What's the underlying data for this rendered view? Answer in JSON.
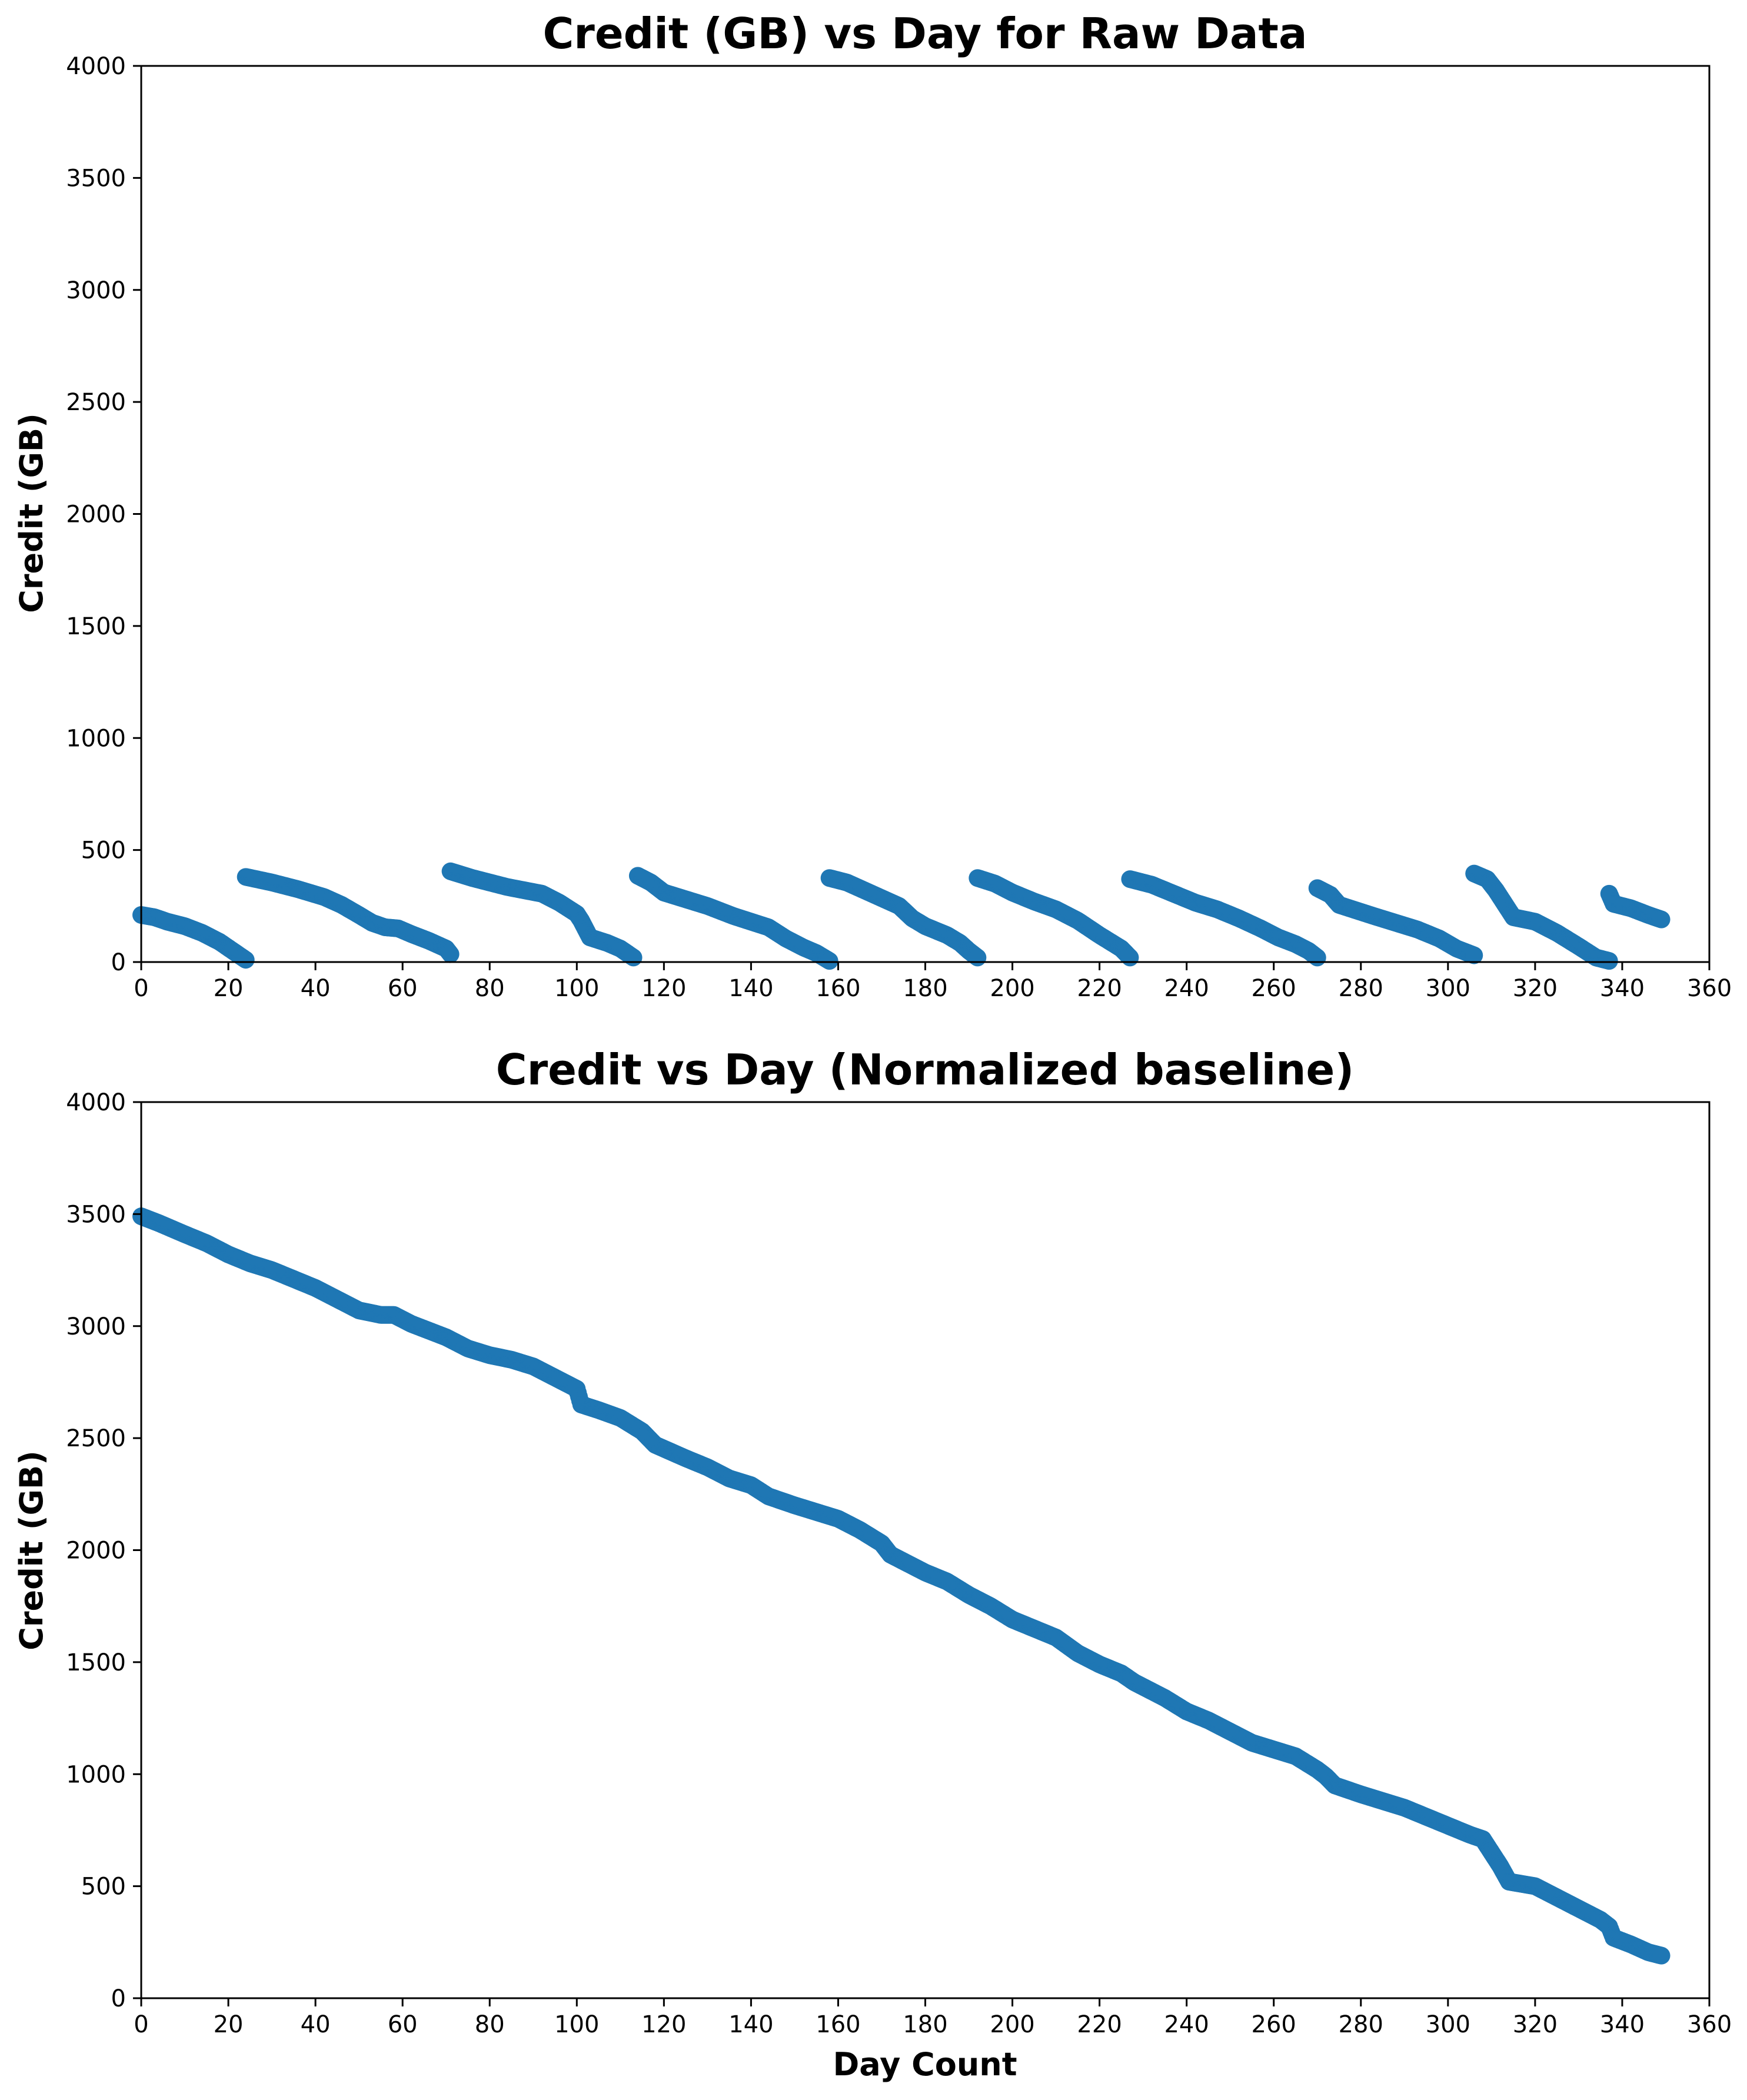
{
  "chart_data": [
    {
      "type": "scatter",
      "title": "Credit (GB) vs Day for Raw Data",
      "xlabel": "",
      "ylabel": "Credit (GB)",
      "xlim": [
        0,
        360
      ],
      "ylim": [
        0,
        4000
      ],
      "xticks": [
        0,
        20,
        40,
        60,
        80,
        100,
        120,
        140,
        160,
        180,
        200,
        220,
        240,
        260,
        280,
        300,
        320,
        340,
        360
      ],
      "yticks": [
        0,
        500,
        1000,
        1500,
        2000,
        2500,
        3000,
        3500,
        4000
      ],
      "color": "#1f77b4",
      "grid": false,
      "series": [
        {
          "name": "",
          "segments": [
            [
              [
                0,
                210
              ],
              [
                3,
                200
              ],
              [
                6,
                180
              ],
              [
                10,
                160
              ],
              [
                14,
                130
              ],
              [
                18,
                90
              ],
              [
                21,
                50
              ],
              [
                24,
                10
              ]
            ],
            [
              [
                24,
                380
              ],
              [
                30,
                355
              ],
              [
                36,
                325
              ],
              [
                42,
                290
              ],
              [
                46,
                255
              ],
              [
                50,
                210
              ],
              [
                53,
                175
              ],
              [
                56,
                155
              ],
              [
                59,
                150
              ],
              [
                62,
                125
              ],
              [
                66,
                95
              ],
              [
                70,
                60
              ],
              [
                71,
                35
              ]
            ],
            [
              [
                71,
                405
              ],
              [
                76,
                375
              ],
              [
                80,
                355
              ],
              [
                84,
                335
              ],
              [
                88,
                320
              ],
              [
                92,
                305
              ],
              [
                96,
                265
              ],
              [
                100,
                215
              ],
              [
                101,
                185
              ],
              [
                103,
                110
              ],
              [
                107,
                85
              ],
              [
                110,
                60
              ],
              [
                113,
                20
              ]
            ],
            [
              [
                114,
                385
              ],
              [
                117,
                355
              ],
              [
                120,
                310
              ],
              [
                125,
                280
              ],
              [
                130,
                250
              ],
              [
                136,
                205
              ],
              [
                140,
                180
              ],
              [
                144,
                155
              ],
              [
                148,
                105
              ],
              [
                152,
                65
              ],
              [
                155,
                40
              ],
              [
                158,
                5
              ]
            ],
            [
              [
                158,
                375
              ],
              [
                162,
                355
              ],
              [
                166,
                320
              ],
              [
                170,
                285
              ],
              [
                174,
                250
              ],
              [
                177,
                195
              ],
              [
                180,
                160
              ],
              [
                185,
                120
              ],
              [
                188,
                85
              ],
              [
                190,
                50
              ],
              [
                192,
                20
              ]
            ],
            [
              [
                192,
                375
              ],
              [
                196,
                350
              ],
              [
                200,
                310
              ],
              [
                205,
                270
              ],
              [
                210,
                235
              ],
              [
                215,
                185
              ],
              [
                220,
                120
              ],
              [
                225,
                60
              ],
              [
                227,
                20
              ]
            ],
            [
              [
                227,
                370
              ],
              [
                232,
                345
              ],
              [
                237,
                305
              ],
              [
                242,
                265
              ],
              [
                247,
                235
              ],
              [
                252,
                195
              ],
              [
                257,
                150
              ],
              [
                261,
                110
              ],
              [
                265,
                80
              ],
              [
                268,
                50
              ],
              [
                270,
                20
              ]
            ],
            [
              [
                270,
                330
              ],
              [
                273,
                300
              ],
              [
                275,
                255
              ],
              [
                279,
                230
              ],
              [
                283,
                205
              ],
              [
                288,
                175
              ],
              [
                293,
                145
              ],
              [
                298,
                105
              ],
              [
                302,
                60
              ],
              [
                306,
                30
              ]
            ],
            [
              [
                306,
                395
              ],
              [
                309,
                370
              ],
              [
                311,
                320
              ],
              [
                313,
                260
              ],
              [
                315,
                200
              ],
              [
                320,
                180
              ],
              [
                325,
                130
              ],
              [
                330,
                70
              ],
              [
                334,
                20
              ],
              [
                337,
                5
              ]
            ],
            [
              [
                337,
                305
              ],
              [
                338,
                260
              ],
              [
                342,
                240
              ],
              [
                346,
                210
              ],
              [
                349,
                190
              ]
            ]
          ]
        }
      ]
    },
    {
      "type": "scatter",
      "title": "Credit vs Day (Normalized baseline)",
      "xlabel": "Day Count",
      "ylabel": "Credit (GB)",
      "xlim": [
        0,
        360
      ],
      "ylim": [
        0,
        4000
      ],
      "xticks": [
        0,
        20,
        40,
        60,
        80,
        100,
        120,
        140,
        160,
        180,
        200,
        220,
        240,
        260,
        280,
        300,
        320,
        340,
        360
      ],
      "yticks": [
        0,
        500,
        1000,
        1500,
        2000,
        2500,
        3000,
        3500,
        4000
      ],
      "color": "#1f77b4",
      "grid": false,
      "series": [
        {
          "name": "",
          "segments": [
            [
              [
                0,
                3490
              ],
              [
                4,
                3460
              ],
              [
                10,
                3410
              ],
              [
                15,
                3370
              ],
              [
                20,
                3320
              ],
              [
                25,
                3280
              ],
              [
                30,
                3250
              ],
              [
                35,
                3210
              ],
              [
                40,
                3170
              ],
              [
                45,
                3120
              ],
              [
                50,
                3070
              ],
              [
                55,
                3050
              ],
              [
                58,
                3050
              ],
              [
                62,
                3010
              ],
              [
                66,
                2980
              ],
              [
                70,
                2950
              ],
              [
                75,
                2900
              ],
              [
                80,
                2870
              ],
              [
                85,
                2850
              ],
              [
                90,
                2820
              ],
              [
                95,
                2770
              ],
              [
                100,
                2720
              ],
              [
                101,
                2650
              ],
              [
                105,
                2625
              ],
              [
                110,
                2590
              ],
              [
                115,
                2530
              ],
              [
                118,
                2470
              ],
              [
                125,
                2410
              ],
              [
                130,
                2370
              ],
              [
                135,
                2320
              ],
              [
                140,
                2290
              ],
              [
                144,
                2240
              ],
              [
                150,
                2200
              ],
              [
                155,
                2170
              ],
              [
                160,
                2140
              ],
              [
                165,
                2090
              ],
              [
                170,
                2030
              ],
              [
                172,
                1980
              ],
              [
                175,
                1950
              ],
              [
                180,
                1900
              ],
              [
                185,
                1860
              ],
              [
                190,
                1800
              ],
              [
                195,
                1750
              ],
              [
                200,
                1690
              ],
              [
                205,
                1650
              ],
              [
                210,
                1610
              ],
              [
                215,
                1540
              ],
              [
                220,
                1490
              ],
              [
                225,
                1450
              ],
              [
                228,
                1410
              ],
              [
                235,
                1340
              ],
              [
                240,
                1280
              ],
              [
                245,
                1240
              ],
              [
                250,
                1190
              ],
              [
                255,
                1140
              ],
              [
                260,
                1110
              ],
              [
                265,
                1080
              ],
              [
                270,
                1020
              ],
              [
                272,
                990
              ],
              [
                274,
                950
              ],
              [
                280,
                910
              ],
              [
                290,
                850
              ],
              [
                300,
                770
              ],
              [
                305,
                730
              ],
              [
                308,
                710
              ],
              [
                310,
                650
              ],
              [
                312,
                590
              ],
              [
                314,
                520
              ],
              [
                320,
                500
              ],
              [
                325,
                450
              ],
              [
                330,
                400
              ],
              [
                335,
                350
              ],
              [
                337,
                320
              ],
              [
                338,
                270
              ],
              [
                342,
                240
              ],
              [
                346,
                205
              ],
              [
                349,
                190
              ]
            ]
          ]
        }
      ]
    }
  ]
}
